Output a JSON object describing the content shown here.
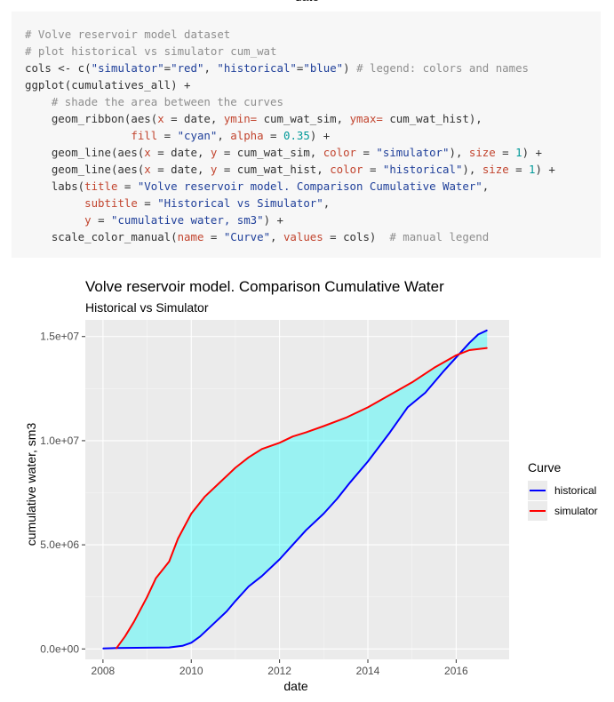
{
  "top_cut_text": "date",
  "code": {
    "lines": [
      [
        {
          "t": "# Volve reservoir model dataset",
          "c": "comment"
        }
      ],
      [
        {
          "t": "# plot historical vs simulator cum_wat",
          "c": "comment"
        }
      ],
      [
        {
          "t": "cols <- c(",
          "c": "plain"
        },
        {
          "t": "\"simulator\"",
          "c": "str"
        },
        {
          "t": "=",
          "c": "plain"
        },
        {
          "t": "\"red\"",
          "c": "str"
        },
        {
          "t": ", ",
          "c": "plain"
        },
        {
          "t": "\"historical\"",
          "c": "str"
        },
        {
          "t": "=",
          "c": "plain"
        },
        {
          "t": "\"blue\"",
          "c": "str"
        },
        {
          "t": ") ",
          "c": "plain"
        },
        {
          "t": "# legend: colors and names",
          "c": "comment"
        }
      ],
      [
        {
          "t": "ggplot(cumulatives_all) +",
          "c": "plain"
        }
      ],
      [
        {
          "t": "    ",
          "c": "plain"
        },
        {
          "t": "# shade the area between the curves",
          "c": "comment"
        }
      ],
      [
        {
          "t": "    geom_ribbon(aes(",
          "c": "plain"
        },
        {
          "t": "x",
          "c": "arg"
        },
        {
          "t": " = date, ",
          "c": "plain"
        },
        {
          "t": "ymin=",
          "c": "arg"
        },
        {
          "t": " cum_wat_sim, ",
          "c": "plain"
        },
        {
          "t": "ymax=",
          "c": "arg"
        },
        {
          "t": " cum_wat_hist),",
          "c": "plain"
        }
      ],
      [
        {
          "t": "                ",
          "c": "plain"
        },
        {
          "t": "fill",
          "c": "arg"
        },
        {
          "t": " = ",
          "c": "plain"
        },
        {
          "t": "\"cyan\"",
          "c": "str"
        },
        {
          "t": ", ",
          "c": "plain"
        },
        {
          "t": "alpha",
          "c": "arg"
        },
        {
          "t": " = ",
          "c": "plain"
        },
        {
          "t": "0.35",
          "c": "num"
        },
        {
          "t": ") +",
          "c": "plain"
        }
      ],
      [
        {
          "t": "    geom_line(aes(",
          "c": "plain"
        },
        {
          "t": "x",
          "c": "arg"
        },
        {
          "t": " = date, ",
          "c": "plain"
        },
        {
          "t": "y",
          "c": "arg"
        },
        {
          "t": " = cum_wat_sim, ",
          "c": "plain"
        },
        {
          "t": "color",
          "c": "arg"
        },
        {
          "t": " = ",
          "c": "plain"
        },
        {
          "t": "\"simulator\"",
          "c": "str"
        },
        {
          "t": "), ",
          "c": "plain"
        },
        {
          "t": "size",
          "c": "arg"
        },
        {
          "t": " = ",
          "c": "plain"
        },
        {
          "t": "1",
          "c": "num"
        },
        {
          "t": ") +",
          "c": "plain"
        }
      ],
      [
        {
          "t": "    geom_line(aes(",
          "c": "plain"
        },
        {
          "t": "x",
          "c": "arg"
        },
        {
          "t": " = date, ",
          "c": "plain"
        },
        {
          "t": "y",
          "c": "arg"
        },
        {
          "t": " = cum_wat_hist, ",
          "c": "plain"
        },
        {
          "t": "color",
          "c": "arg"
        },
        {
          "t": " = ",
          "c": "plain"
        },
        {
          "t": "\"historical\"",
          "c": "str"
        },
        {
          "t": "), ",
          "c": "plain"
        },
        {
          "t": "size",
          "c": "arg"
        },
        {
          "t": " = ",
          "c": "plain"
        },
        {
          "t": "1",
          "c": "num"
        },
        {
          "t": ") +",
          "c": "plain"
        }
      ],
      [
        {
          "t": "    labs(",
          "c": "plain"
        },
        {
          "t": "title",
          "c": "arg"
        },
        {
          "t": " = ",
          "c": "plain"
        },
        {
          "t": "\"Volve reservoir model. Comparison Cumulative Water\"",
          "c": "str"
        },
        {
          "t": ",",
          "c": "plain"
        }
      ],
      [
        {
          "t": "         ",
          "c": "plain"
        },
        {
          "t": "subtitle",
          "c": "arg"
        },
        {
          "t": " = ",
          "c": "plain"
        },
        {
          "t": "\"Historical vs Simulator\"",
          "c": "str"
        },
        {
          "t": ",",
          "c": "plain"
        }
      ],
      [
        {
          "t": "         ",
          "c": "plain"
        },
        {
          "t": "y",
          "c": "arg"
        },
        {
          "t": " = ",
          "c": "plain"
        },
        {
          "t": "\"cumulative water, sm3\"",
          "c": "str"
        },
        {
          "t": ") +",
          "c": "plain"
        }
      ],
      [
        {
          "t": "    scale_color_manual(",
          "c": "plain"
        },
        {
          "t": "name",
          "c": "arg"
        },
        {
          "t": " = ",
          "c": "plain"
        },
        {
          "t": "\"Curve\"",
          "c": "str"
        },
        {
          "t": ", ",
          "c": "plain"
        },
        {
          "t": "values",
          "c": "arg"
        },
        {
          "t": " = cols)  ",
          "c": "plain"
        },
        {
          "t": "# manual legend",
          "c": "comment"
        }
      ]
    ]
  },
  "chart_data": {
    "type": "line",
    "title": "Volve reservoir model. Comparison Cumulative Water",
    "subtitle": "Historical vs Simulator",
    "xlabel": "date",
    "ylabel": "cumulative water, sm3",
    "xlim": [
      2007.6,
      2017.2
    ],
    "ylim": [
      -500000,
      15800000
    ],
    "x_ticks": [
      2008,
      2010,
      2012,
      2014,
      2016
    ],
    "x_tick_labels": [
      "2008",
      "2010",
      "2012",
      "2014",
      "2016"
    ],
    "y_ticks": [
      0,
      5000000,
      10000000,
      15000000
    ],
    "y_tick_labels": [
      "0.0e+00",
      "5.0e+06",
      "1.0e+07",
      "1.5e+07"
    ],
    "grid": true,
    "panel_background": "#ebebeb",
    "ribbon": {
      "fill": "#00ffff",
      "alpha": 0.35
    },
    "legend": {
      "title": "Curve",
      "position": "right"
    },
    "series": [
      {
        "name": "historical",
        "color": "#0000ff",
        "x": [
          2008.0,
          2008.3,
          2009.0,
          2009.5,
          2009.8,
          2010.0,
          2010.2,
          2010.5,
          2010.8,
          2011.0,
          2011.3,
          2011.6,
          2012.0,
          2012.3,
          2012.6,
          2013.0,
          2013.3,
          2013.6,
          2014.0,
          2014.5,
          2014.9,
          2015.3,
          2015.7,
          2016.0,
          2016.3,
          2016.5,
          2016.7
        ],
        "y": [
          20000,
          40000,
          60000,
          70000,
          150000,
          300000,
          600000,
          1200000,
          1800000,
          2300000,
          3000000,
          3500000,
          4300000,
          5000000,
          5700000,
          6500000,
          7200000,
          8000000,
          9000000,
          10400000,
          11600000,
          12300000,
          13300000,
          14000000,
          14700000,
          15100000,
          15300000
        ]
      },
      {
        "name": "simulator",
        "color": "#ff0000",
        "x": [
          2008.3,
          2008.5,
          2008.7,
          2009.0,
          2009.2,
          2009.5,
          2009.7,
          2010.0,
          2010.3,
          2010.6,
          2011.0,
          2011.3,
          2011.6,
          2012.0,
          2012.3,
          2012.6,
          2013.0,
          2013.5,
          2014.0,
          2014.5,
          2015.0,
          2015.5,
          2016.0,
          2016.3,
          2016.7
        ],
        "y": [
          20000,
          600000,
          1300000,
          2500000,
          3400000,
          4200000,
          5300000,
          6500000,
          7300000,
          7900000,
          8700000,
          9200000,
          9600000,
          9900000,
          10200000,
          10400000,
          10700000,
          11100000,
          11600000,
          12200000,
          12800000,
          13500000,
          14100000,
          14350000,
          14450000
        ]
      }
    ]
  }
}
